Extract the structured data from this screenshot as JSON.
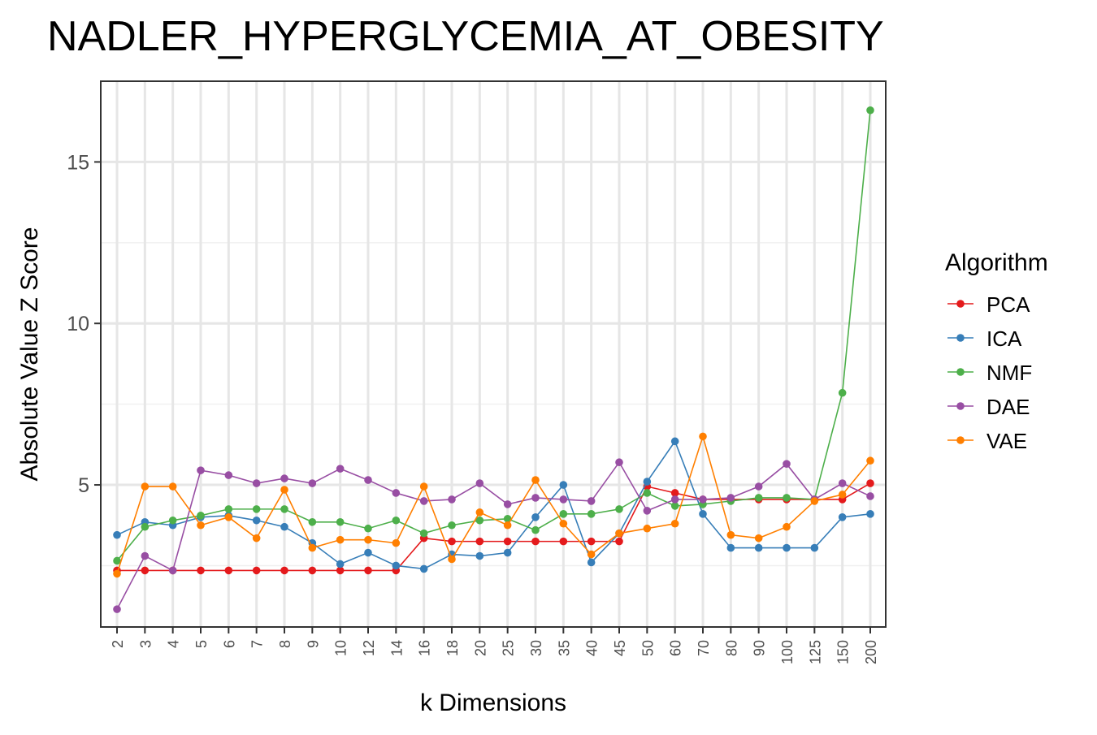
{
  "chart_data": {
    "type": "line",
    "title": "NADLER_HYPERGLYCEMIA_AT_OBESITY",
    "xlabel": "k Dimensions",
    "ylabel": "Absolute Value Z Score",
    "categories": [
      "2",
      "3",
      "4",
      "5",
      "6",
      "7",
      "8",
      "9",
      "10",
      "12",
      "14",
      "16",
      "18",
      "20",
      "25",
      "30",
      "35",
      "40",
      "45",
      "50",
      "60",
      "70",
      "80",
      "90",
      "100",
      "125",
      "150",
      "200"
    ],
    "y_ticks": [
      5,
      10,
      15
    ],
    "ylim": [
      0.6,
      17.5
    ],
    "grid": true,
    "legend": {
      "title": "Algorithm",
      "position": "right"
    },
    "series": [
      {
        "name": "PCA",
        "color": "#e41a1c",
        "values": [
          2.35,
          2.35,
          2.35,
          2.35,
          2.35,
          2.35,
          2.35,
          2.35,
          2.35,
          2.35,
          2.35,
          3.35,
          3.25,
          3.25,
          3.25,
          3.25,
          3.25,
          3.25,
          3.25,
          4.95,
          4.75,
          4.55,
          4.55,
          4.55,
          4.55,
          4.55,
          4.55,
          5.05
        ]
      },
      {
        "name": "ICA",
        "color": "#377eb8",
        "values": [
          3.45,
          3.85,
          3.75,
          4.0,
          4.05,
          3.9,
          3.7,
          3.2,
          2.55,
          2.9,
          2.5,
          2.4,
          2.85,
          2.8,
          2.9,
          4.0,
          5.0,
          2.6,
          3.5,
          5.1,
          6.35,
          4.1,
          3.05,
          3.05,
          3.05,
          3.05,
          4.0,
          4.1
        ]
      },
      {
        "name": "NMF",
        "color": "#4daf4a",
        "values": [
          2.65,
          3.7,
          3.9,
          4.05,
          4.25,
          4.25,
          4.25,
          3.85,
          3.85,
          3.65,
          3.9,
          3.5,
          3.75,
          3.9,
          3.95,
          3.6,
          4.1,
          4.1,
          4.25,
          4.75,
          4.35,
          4.4,
          4.5,
          4.6,
          4.6,
          4.55,
          7.85,
          16.6
        ]
      },
      {
        "name": "DAE",
        "color": "#984ea3",
        "values": [
          1.15,
          2.8,
          2.35,
          5.45,
          5.3,
          5.05,
          5.2,
          5.05,
          5.5,
          5.15,
          4.75,
          4.5,
          4.55,
          5.05,
          4.4,
          4.6,
          4.55,
          4.5,
          5.7,
          4.2,
          4.55,
          4.55,
          4.6,
          4.95,
          5.65,
          4.55,
          5.05,
          4.65
        ]
      },
      {
        "name": "VAE",
        "color": "#ff7f00",
        "values": [
          2.25,
          4.95,
          4.95,
          3.75,
          4.0,
          3.35,
          4.85,
          3.05,
          3.3,
          3.3,
          3.2,
          4.95,
          2.7,
          4.15,
          3.75,
          5.15,
          3.8,
          2.85,
          3.5,
          3.65,
          3.8,
          6.5,
          3.45,
          3.35,
          3.7,
          4.5,
          4.7,
          5.75
        ]
      }
    ]
  }
}
